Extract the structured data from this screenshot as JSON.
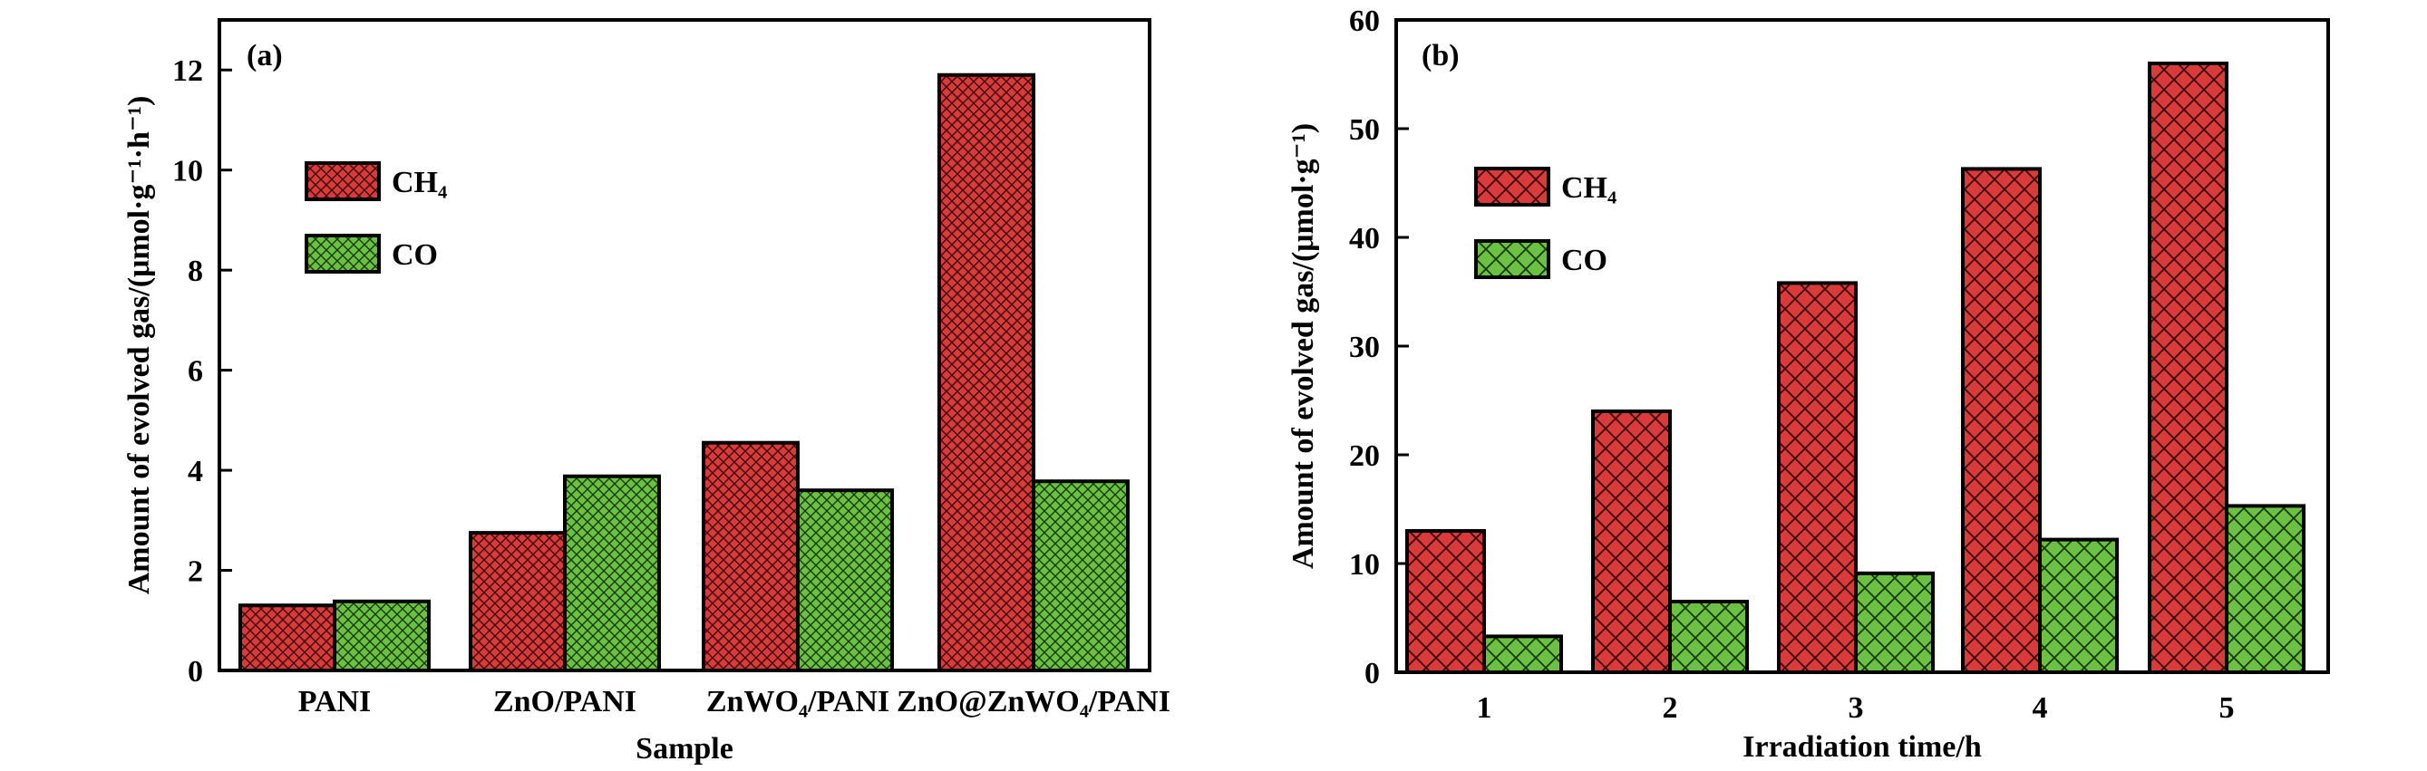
{
  "chart_data": [
    {
      "panel": "(a)",
      "type": "bar",
      "xlabel": "Sample",
      "ylabel": "Amount of evolved gas/(μmol·g⁻¹·h⁻¹)",
      "categories": [
        "PANI",
        "ZnO/PANI",
        "ZnWO₄/PANI",
        "ZnO@ZnWO₄/PANI"
      ],
      "series": [
        {
          "name": "CH₄",
          "values": [
            1.3,
            2.75,
            4.55,
            11.9
          ],
          "color": "#d93a3a",
          "pattern": "dense crosshatch"
        },
        {
          "name": "CO",
          "values": [
            1.38,
            3.88,
            3.6,
            3.78
          ],
          "color": "#6cc043",
          "pattern": "dense crosshatch"
        }
      ],
      "ylim": [
        0,
        13
      ],
      "yticks": [
        0,
        2,
        4,
        6,
        8,
        10,
        12
      ],
      "legend_position": "upper-left",
      "grid": false
    },
    {
      "panel": "(b)",
      "type": "bar",
      "xlabel": "Irradiation time/h",
      "ylabel": "Amount of evolved gas/(μmol·g⁻¹)",
      "categories": [
        "1",
        "2",
        "3",
        "4",
        "5"
      ],
      "series": [
        {
          "name": "CH₄",
          "values": [
            13.0,
            24.0,
            35.8,
            46.3,
            56.0
          ],
          "color": "#d93a3a",
          "pattern": "crosshatch"
        },
        {
          "name": "CO",
          "values": [
            3.3,
            6.5,
            9.1,
            12.2,
            15.3
          ],
          "color": "#6cc043",
          "pattern": "crosshatch"
        }
      ],
      "ylim": [
        0,
        60
      ],
      "yticks": [
        0,
        10,
        20,
        30,
        40,
        50,
        60
      ],
      "legend_position": "upper-left",
      "grid": false
    }
  ]
}
